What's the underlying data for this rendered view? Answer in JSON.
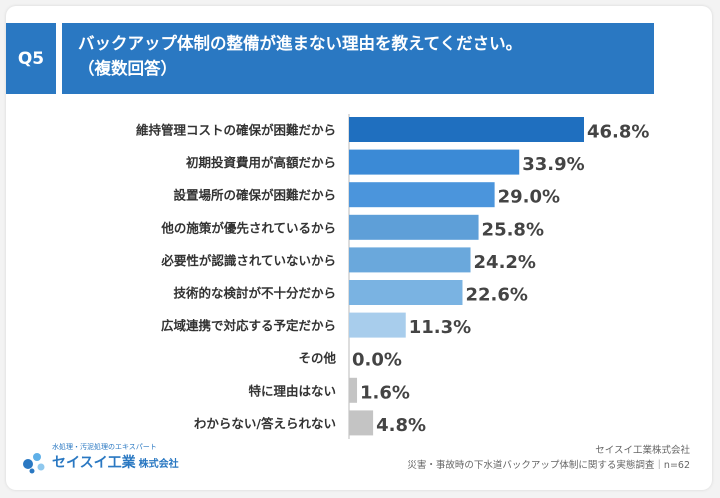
{
  "header": {
    "badge": "Q5",
    "title": "バックアップ体制の整備が進まない理由を教えてください。",
    "subtitle": "（複数回答）"
  },
  "chart_data": {
    "type": "bar",
    "orientation": "horizontal",
    "categories": [
      "維持管理コストの確保が困難だから",
      "初期投資費用が高額だから",
      "設置場所の確保が困難だから",
      "他の施策が優先されているから",
      "必要性が認識されていないから",
      "技術的な検討が不十分だから",
      "広域連携で対応する予定だから",
      "その他",
      "特に理由はない",
      "わからない/答えられない"
    ],
    "values": [
      46.8,
      33.9,
      29.0,
      25.8,
      24.2,
      22.6,
      11.3,
      0.0,
      1.6,
      4.8
    ],
    "value_labels": [
      "46.8%",
      "33.9%",
      "29.0%",
      "25.8%",
      "24.2%",
      "22.6%",
      "11.3%",
      "0.0%",
      "1.6%",
      "4.8%"
    ],
    "colors": [
      "#1f6fbf",
      "#3b8ad6",
      "#4b95dc",
      "#5e9fd8",
      "#6aa8dc",
      "#7ab3e2",
      "#a8cdec",
      "#c4c4c4",
      "#c4c4c4",
      "#c4c4c4"
    ],
    "xlim": [
      0,
      50
    ]
  },
  "footer": {
    "logo_tagline": "水処理・汚泥処理のエキスパート",
    "logo_name": "セイスイ工業",
    "logo_suffix": "株式会社",
    "company": "セイスイ工業株式会社",
    "survey": "災害・事故時の下水道バックアップ体制に関する実態調査｜n=62"
  }
}
